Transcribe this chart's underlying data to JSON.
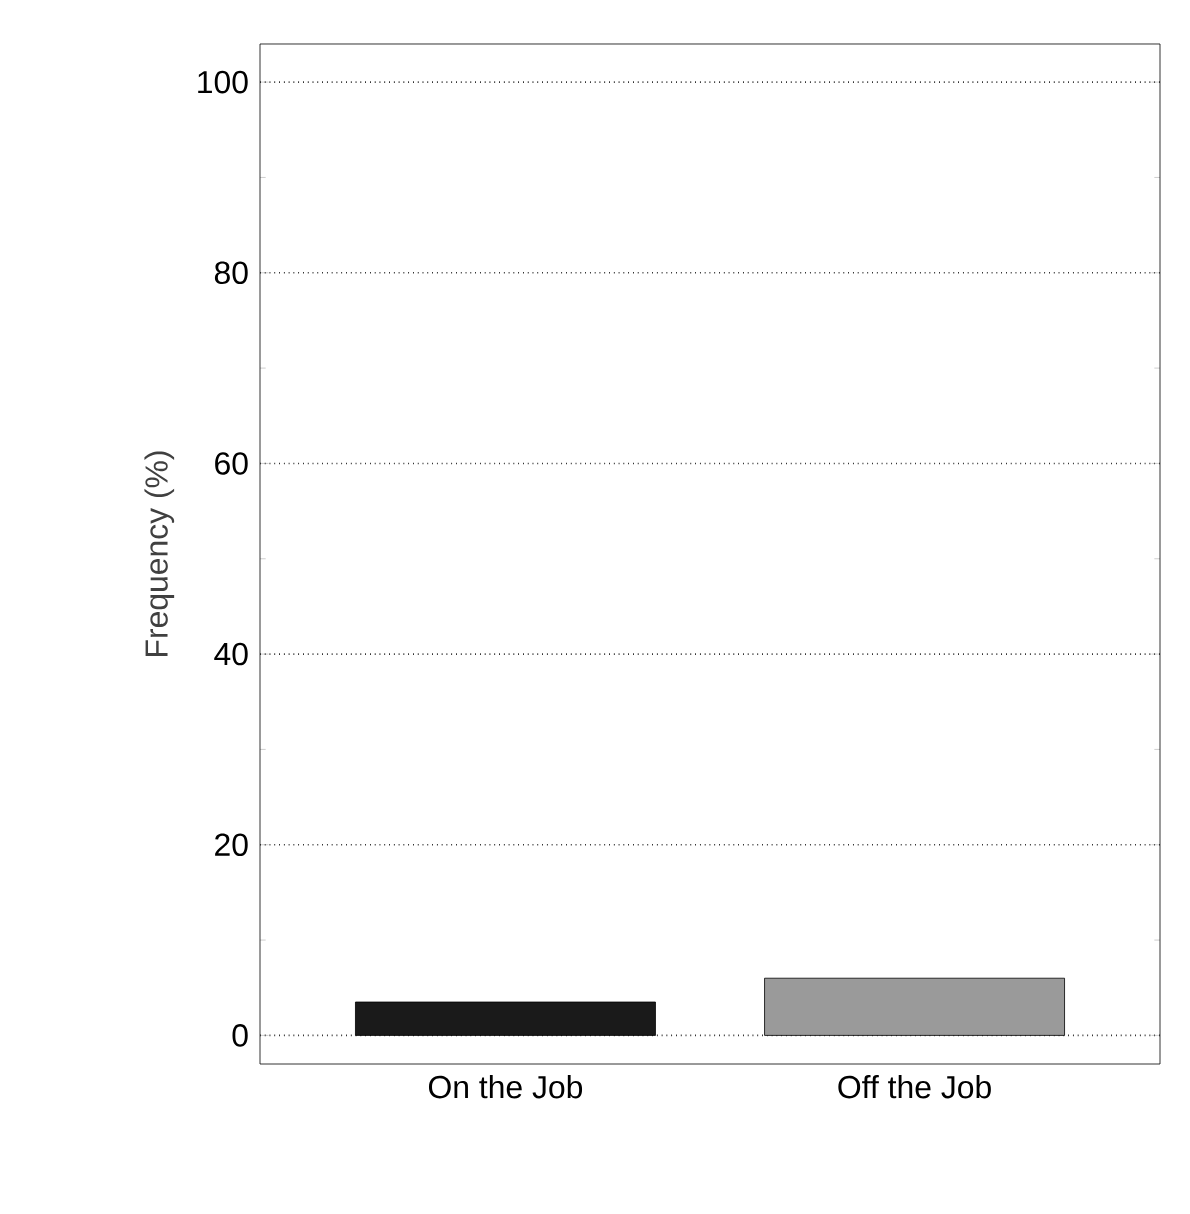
{
  "chart_data": {
    "type": "bar",
    "ylabel": "Frequency (%)",
    "categories": [
      "On the Job",
      "Off the Job"
    ],
    "values": [
      3.5,
      6
    ],
    "colors": [
      "#1a1a1a",
      "#9a9a9a"
    ],
    "ylim": [
      -3,
      104
    ],
    "yticks": [
      0,
      20,
      40,
      60,
      80,
      100
    ],
    "grid": "y"
  }
}
